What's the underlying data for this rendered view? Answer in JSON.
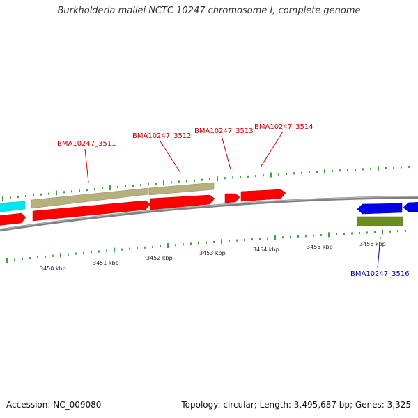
{
  "title": "Burkholderia mallei NCTC 10247 chromosome I, complete genome",
  "footer": {
    "accession": "Accession: NC_009080",
    "summary": "Topology: circular; Length: 3,495,687 bp; Genes: 3,325"
  },
  "colors": {
    "forward_cds": "#ff0000",
    "reverse_cds": "#0000ee",
    "forward_gene": "#b5b07d",
    "reverse_gene": "#6b8e23",
    "cyan_feature": "#00e5ee",
    "backbone": "#808080",
    "ticks": "#007f00",
    "label_forward": "#cc0000",
    "label_reverse": "#0000aa",
    "scale_label": "#222222"
  },
  "scale_labels": [
    "3450 kbp",
    "3451 kbp",
    "3452 kbp",
    "3453 kbp",
    "3454 kbp",
    "3455 kbp",
    "3456 kbp"
  ],
  "gene_labels": {
    "forward": [
      "BMA10247_3511",
      "BMA10247_3512",
      "BMA10247_3513",
      "BMA10247_3514"
    ],
    "reverse": [
      "BMA10247_3516"
    ]
  }
}
